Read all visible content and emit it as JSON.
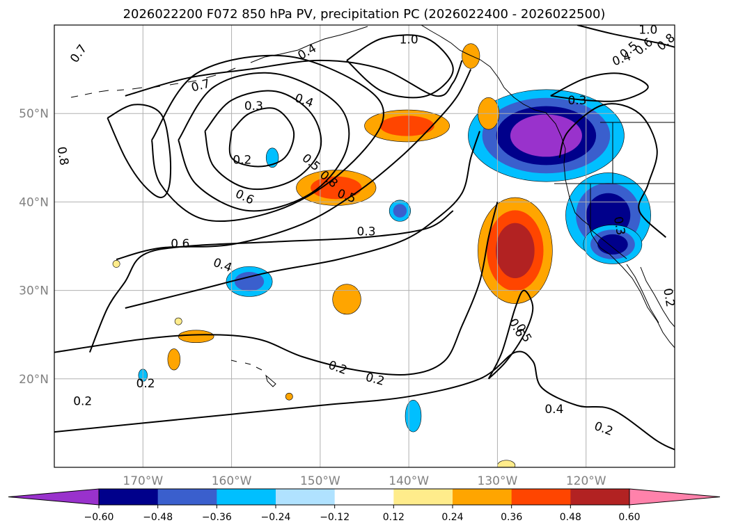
{
  "chart_data": {
    "type": "contour-map",
    "title": "2026022200 F072 850 hPa PV, precipitation PC (2026022400 - 2026022500)",
    "lon_range": [
      -180,
      -110
    ],
    "lat_range": [
      10,
      60
    ],
    "x_ticks": [
      {
        "lon": -170,
        "label": "170°W"
      },
      {
        "lon": -160,
        "label": "160°W"
      },
      {
        "lon": -150,
        "label": "150°W"
      },
      {
        "lon": -140,
        "label": "140°W"
      },
      {
        "lon": -130,
        "label": "130°W"
      },
      {
        "lon": -120,
        "label": "120°W"
      }
    ],
    "y_ticks": [
      {
        "lat": 20,
        "label": "20°N"
      },
      {
        "lat": 30,
        "label": "30°N"
      },
      {
        "lat": 40,
        "label": "40°N"
      },
      {
        "lat": 50,
        "label": "50°N"
      }
    ],
    "colorbar": {
      "levels": [
        -0.6,
        -0.48,
        -0.36,
        -0.24,
        -0.12,
        0.12,
        0.24,
        0.36,
        0.48,
        0.6
      ],
      "labels": [
        "−0.60",
        "−0.48",
        "−0.36",
        "−0.24",
        "−0.12",
        "0.12",
        "0.24",
        "0.36",
        "0.48",
        "0.60"
      ],
      "colors": [
        "#9932cc",
        "#00008b",
        "#3a5fcd",
        "#00bfff",
        "#b0e2ff",
        "#ffffff",
        "#ffec8b",
        "#ffa500",
        "#ff4500",
        "#b22222",
        "#ff82ab"
      ],
      "extend": "both"
    },
    "precip_anomalies": [
      {
        "lon": -124.5,
        "lat": 47.5,
        "rx": 8.8,
        "ry": 5.2,
        "levels": [
          -0.24,
          -0.36,
          -0.48,
          -0.6
        ]
      },
      {
        "lon": -117.5,
        "lat": 38.5,
        "rx": 4.8,
        "ry": 4.8,
        "levels": [
          -0.24,
          -0.36,
          -0.48
        ]
      },
      {
        "lon": -117.0,
        "lat": 35.2,
        "rx": 3.3,
        "ry": 2.2,
        "levels": [
          -0.24,
          -0.36,
          -0.48
        ]
      },
      {
        "lon": -128.0,
        "lat": 34.5,
        "rx": 4.2,
        "ry": 6.0,
        "levels": [
          0.24,
          0.36,
          0.48
        ]
      },
      {
        "lon": -131.0,
        "lat": 50.0,
        "rx": 1.2,
        "ry": 1.8,
        "levels": [
          0.24
        ]
      },
      {
        "lon": -140.2,
        "lat": 48.6,
        "rx": 4.8,
        "ry": 1.8,
        "levels": [
          0.24,
          0.36
        ]
      },
      {
        "lon": -148.2,
        "lat": 41.6,
        "rx": 4.5,
        "ry": 2.0,
        "levels": [
          0.24,
          0.36
        ]
      },
      {
        "lon": -133.0,
        "lat": 56.5,
        "rx": 1.0,
        "ry": 1.4,
        "levels": [
          0.24
        ]
      },
      {
        "lon": -155.4,
        "lat": 45.0,
        "rx": 0.7,
        "ry": 1.1,
        "levels": [
          -0.24
        ]
      },
      {
        "lon": -141.0,
        "lat": 39.0,
        "rx": 1.2,
        "ry": 1.2,
        "levels": [
          -0.24,
          -0.36
        ]
      },
      {
        "lon": -158.0,
        "lat": 31.0,
        "rx": 2.6,
        "ry": 1.7,
        "levels": [
          -0.24,
          -0.36
        ]
      },
      {
        "lon": -147.0,
        "lat": 29.0,
        "rx": 1.6,
        "ry": 1.7,
        "levels": [
          0.24
        ]
      },
      {
        "lon": -164.0,
        "lat": 24.8,
        "rx": 2.0,
        "ry": 0.7,
        "levels": [
          0.24
        ]
      },
      {
        "lon": -166.5,
        "lat": 22.2,
        "rx": 0.7,
        "ry": 1.2,
        "levels": [
          0.24
        ]
      },
      {
        "lon": -139.5,
        "lat": 15.8,
        "rx": 0.9,
        "ry": 1.8,
        "levels": [
          -0.24
        ]
      },
      {
        "lon": -170.0,
        "lat": 20.4,
        "rx": 0.5,
        "ry": 0.7,
        "levels": [
          -0.24
        ]
      },
      {
        "lon": -166.0,
        "lat": 26.5,
        "rx": 0.4,
        "ry": 0.4,
        "levels": [
          0.12
        ]
      },
      {
        "lon": -173.0,
        "lat": 33.0,
        "rx": 0.4,
        "ry": 0.4,
        "levels": [
          0.12
        ]
      },
      {
        "lon": -153.5,
        "lat": 18.0,
        "rx": 0.4,
        "ry": 0.4,
        "levels": [
          0.24
        ]
      },
      {
        "lon": -129.0,
        "lat": 10.2,
        "rx": 1.0,
        "ry": 0.6,
        "levels": [
          0.12
        ]
      }
    ],
    "pv_contours": [
      {
        "level": 0.2,
        "points": [
          [
            -180,
            14
          ],
          [
            -170,
            15
          ],
          [
            -160,
            16
          ],
          [
            -150,
            17
          ],
          [
            -140,
            18
          ],
          [
            -132,
            20
          ],
          [
            -128,
            23
          ],
          [
            -126,
            22
          ],
          [
            -125,
            19
          ],
          [
            -121,
            17
          ],
          [
            -117,
            16.5
          ],
          [
            -112,
            13
          ],
          [
            -110,
            12
          ]
        ]
      },
      {
        "level": 0.2,
        "points": [
          [
            -180,
            23
          ],
          [
            -170,
            24.5
          ],
          [
            -163,
            25
          ],
          [
            -157,
            24.5
          ],
          [
            -152,
            22.5
          ],
          [
            -146,
            21
          ],
          [
            -140,
            20.5
          ],
          [
            -136,
            22
          ],
          [
            -134,
            26
          ],
          [
            -132,
            31
          ],
          [
            -131,
            36
          ],
          [
            -130,
            40
          ]
        ]
      },
      {
        "level": 0.3,
        "points": [
          [
            -176,
            23
          ],
          [
            -174,
            28
          ],
          [
            -172,
            31
          ],
          [
            -170,
            34
          ],
          [
            -165,
            35
          ],
          [
            -155,
            35.5
          ],
          [
            -145,
            36
          ],
          [
            -138,
            37
          ],
          [
            -135,
            39
          ]
        ]
      },
      {
        "level": 0.3,
        "points": [
          [
            -123,
            45
          ],
          [
            -122,
            48
          ],
          [
            -118,
            51
          ],
          [
            -114,
            50
          ],
          [
            -112,
            46
          ],
          [
            -113,
            42
          ],
          [
            -114,
            39
          ],
          [
            -111,
            36
          ]
        ]
      },
      {
        "level": 0.3,
        "points": [
          [
            -124,
            52
          ],
          [
            -120,
            54
          ],
          [
            -116,
            54.5
          ],
          [
            -113,
            53
          ],
          [
            -116,
            51.5
          ],
          [
            -120,
            51.5
          ],
          [
            -124,
            52
          ]
        ]
      },
      {
        "level": 0.4,
        "points": [
          [
            -172,
            28
          ],
          [
            -164,
            30
          ],
          [
            -156,
            32
          ],
          [
            -148,
            33.5
          ],
          [
            -141,
            35.5
          ],
          [
            -137,
            38
          ],
          [
            -134,
            41
          ],
          [
            -133,
            45
          ],
          [
            -132,
            48
          ]
        ]
      },
      {
        "level": 0.5,
        "points": [
          [
            -131,
            20
          ],
          [
            -129.5,
            23
          ],
          [
            -128,
            28
          ],
          [
            -127,
            30
          ],
          [
            -126,
            28
          ],
          [
            -127,
            25
          ],
          [
            -129,
            22
          ],
          [
            -131,
            20
          ]
        ]
      },
      {
        "level": 0.6,
        "points": [
          [
            -173,
            33.5
          ],
          [
            -168,
            34.8
          ],
          [
            -160,
            35.2
          ],
          [
            -152,
            37.5
          ],
          [
            -146,
            41
          ],
          [
            -141,
            45
          ],
          [
            -137,
            49
          ],
          [
            -134.5,
            52
          ],
          [
            -133,
            55
          ]
        ]
      },
      {
        "level": 0.7,
        "points": [
          [
            -172,
            52
          ],
          [
            -165,
            54
          ],
          [
            -158,
            55
          ],
          [
            -150,
            56
          ],
          [
            -143,
            55
          ],
          [
            -137,
            52
          ],
          [
            -135,
            53.5
          ],
          [
            -134,
            56
          ]
        ]
      },
      {
        "level": 0.8,
        "points": [
          [
            -174,
            49.5
          ],
          [
            -171,
            51
          ],
          [
            -168,
            50
          ],
          [
            -167,
            46
          ],
          [
            -167,
            42
          ],
          [
            -168,
            40.5
          ],
          [
            -170,
            42
          ],
          [
            -172,
            45
          ],
          [
            -174,
            49.5
          ]
        ]
      },
      {
        "level": 1.0,
        "points": [
          [
            -147,
            56
          ],
          [
            -143,
            58.5
          ],
          [
            -138,
            58.5
          ],
          [
            -135,
            55
          ],
          [
            -138,
            52
          ],
          [
            -143,
            52.5
          ],
          [
            -147,
            56
          ]
        ]
      },
      {
        "level": 1.0,
        "points": [
          [
            -121,
            60
          ],
          [
            -117,
            59
          ],
          [
            -112,
            58
          ],
          [
            -110,
            57.5
          ]
        ]
      },
      {
        "level": 0.2,
        "points": [
          [
            -160,
            48
          ],
          [
            -158,
            50
          ],
          [
            -155,
            50.5
          ],
          [
            -153,
            48
          ],
          [
            -154,
            45
          ],
          [
            -157,
            44
          ],
          [
            -160,
            45
          ],
          [
            -160,
            48
          ]
        ]
      },
      {
        "level": 0.3,
        "points": [
          [
            -163,
            48
          ],
          [
            -160,
            51.5
          ],
          [
            -155,
            52.5
          ],
          [
            -151,
            50
          ],
          [
            -150,
            46
          ],
          [
            -153,
            42.5
          ],
          [
            -158,
            41.5
          ],
          [
            -162,
            44
          ],
          [
            -163,
            48
          ]
        ]
      },
      {
        "level": 0.4,
        "points": [
          [
            -166,
            47
          ],
          [
            -162,
            53
          ],
          [
            -155,
            54.5
          ],
          [
            -148,
            51
          ],
          [
            -147,
            46
          ],
          [
            -151,
            41
          ],
          [
            -158,
            39
          ],
          [
            -164,
            42
          ],
          [
            -166,
            47
          ]
        ]
      },
      {
        "level": 0.5,
        "points": [
          [
            -169,
            47
          ],
          [
            -164,
            54.5
          ],
          [
            -154,
            56.5
          ],
          [
            -145,
            53
          ],
          [
            -143,
            49
          ],
          [
            -148,
            43
          ],
          [
            -155,
            39
          ],
          [
            -163,
            38
          ],
          [
            -168,
            42
          ],
          [
            -169,
            47
          ]
        ]
      }
    ],
    "contour_labels": [
      {
        "lon": -177.3,
        "lat": 56.8,
        "text": "0.7",
        "angle": -55
      },
      {
        "lon": -151.5,
        "lat": 57.0,
        "text": "0.4",
        "angle": -30
      },
      {
        "lon": -140.0,
        "lat": 58.4,
        "text": "1.0",
        "angle": 0
      },
      {
        "lon": -113.0,
        "lat": 59.5,
        "text": "1.0",
        "angle": 0
      },
      {
        "lon": -111.0,
        "lat": 58.1,
        "text": "0.8",
        "angle": -40
      },
      {
        "lon": -113.5,
        "lat": 57.6,
        "text": "0.6",
        "angle": -40
      },
      {
        "lon": -115.2,
        "lat": 57.2,
        "text": "0.5",
        "angle": -40
      },
      {
        "lon": -116.0,
        "lat": 56.2,
        "text": "0.4",
        "angle": -20
      },
      {
        "lon": -163.5,
        "lat": 53.2,
        "text": "0.7",
        "angle": -15
      },
      {
        "lon": -157.5,
        "lat": 50.9,
        "text": "0.3",
        "angle": 0
      },
      {
        "lon": -151.8,
        "lat": 51.5,
        "text": "0.4",
        "angle": 20
      },
      {
        "lon": -121.0,
        "lat": 51.5,
        "text": "0.3",
        "angle": 0
      },
      {
        "lon": -179.0,
        "lat": 45.2,
        "text": "0.8",
        "angle": 80
      },
      {
        "lon": -158.8,
        "lat": 44.8,
        "text": "0.2",
        "angle": 0
      },
      {
        "lon": -151.0,
        "lat": 44.5,
        "text": "0.5",
        "angle": 40
      },
      {
        "lon": -149.0,
        "lat": 42.6,
        "text": "0.8",
        "angle": 40
      },
      {
        "lon": -147.0,
        "lat": 40.7,
        "text": "0.5",
        "angle": 20
      },
      {
        "lon": -158.5,
        "lat": 40.6,
        "text": "0.6",
        "angle": 25
      },
      {
        "lon": -116.2,
        "lat": 37.3,
        "text": "0.3",
        "angle": 80
      },
      {
        "lon": -144.8,
        "lat": 36.7,
        "text": "0.3",
        "angle": 0
      },
      {
        "lon": -165.8,
        "lat": 35.3,
        "text": "0.6",
        "angle": 0
      },
      {
        "lon": -161.0,
        "lat": 32.9,
        "text": "0.4",
        "angle": 20
      },
      {
        "lon": -110.6,
        "lat": 29.2,
        "text": "0.2",
        "angle": 80
      },
      {
        "lon": -127.8,
        "lat": 25.8,
        "text": "0.6",
        "angle": 60
      },
      {
        "lon": -127.0,
        "lat": 25.2,
        "text": "0.5",
        "angle": 60
      },
      {
        "lon": -148.0,
        "lat": 21.3,
        "text": "0.2",
        "angle": 20
      },
      {
        "lon": -169.7,
        "lat": 19.5,
        "text": "0.2",
        "angle": 0
      },
      {
        "lon": -176.8,
        "lat": 17.5,
        "text": "0.2",
        "angle": 0
      },
      {
        "lon": -143.8,
        "lat": 20.0,
        "text": "0.2",
        "angle": 15
      },
      {
        "lon": -123.6,
        "lat": 16.6,
        "text": "0.4",
        "angle": 0
      },
      {
        "lon": -118.0,
        "lat": 14.4,
        "text": "0.2",
        "angle": 20
      }
    ]
  }
}
